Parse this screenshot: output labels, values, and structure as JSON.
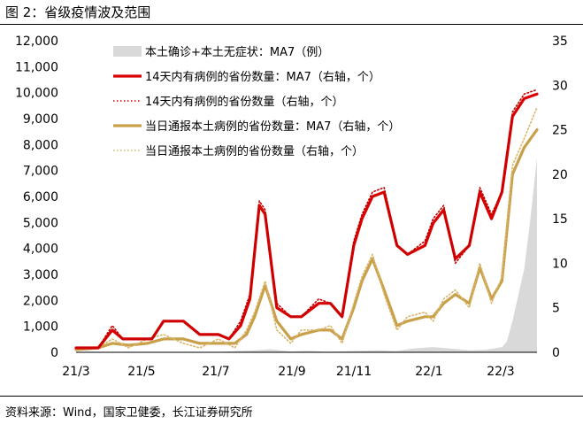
{
  "figure_title": "图 2：省级疫情波及范围",
  "source": "资料来源：Wind，国家卫健委，长江证券研究所",
  "colors": {
    "bar": "#d9d9d9",
    "line_red": "#d90000",
    "line_red_dot": "#c00000",
    "line_gold": "#c9a04a",
    "line_gold_dot": "#d9b56a"
  },
  "chart_data": {
    "type": "bar+line",
    "title": "",
    "xlabel": "",
    "ylabel_left": "",
    "ylabel_right": "",
    "x_ticks": [
      "21/3",
      "21/5",
      "21/7",
      "21/9",
      "21/11",
      "22/1",
      "22/3"
    ],
    "ylim_left": [
      0,
      12000
    ],
    "yticks_left": [
      "0",
      "1,000",
      "2,000",
      "3,000",
      "4,000",
      "5,000",
      "6,000",
      "7,000",
      "8,000",
      "9,000",
      "10,000",
      "11,000",
      "12,000"
    ],
    "ylim_right": [
      0,
      35
    ],
    "yticks_right": [
      "0",
      "5",
      "10",
      "15",
      "20",
      "25",
      "30",
      "35"
    ],
    "grid": false,
    "legend_position": "top-center",
    "legend": [
      "本土确诊+本土无症状：MA7（例）",
      "14天内有病例的省份数量：MA7（右轴，个）",
      "14天内有病例的省份数量（右轴，个）",
      "当日通报本土病例的省份数量：MA7（右轴，个）",
      "当日通报本土病例的省份数量（右轴，个）"
    ],
    "x_start": "2021-03-01",
    "x_end": "2022-03-31",
    "series": [
      {
        "name": "本土确诊+本土无症状：MA7（例）",
        "axis": "left",
        "style": "bar",
        "x": [
          "2021-03-01",
          "2021-04-01",
          "2021-05-01",
          "2021-06-01",
          "2021-07-01",
          "2021-08-01",
          "2021-08-15",
          "2021-09-01",
          "2021-09-15",
          "2021-10-01",
          "2021-10-20",
          "2021-11-01",
          "2021-11-15",
          "2021-12-01",
          "2021-12-15",
          "2022-01-01",
          "2022-01-15",
          "2022-02-01",
          "2022-02-15",
          "2022-03-01",
          "2022-03-05",
          "2022-03-10",
          "2022-03-15",
          "2022-03-20",
          "2022-03-25",
          "2022-03-31"
        ],
        "y": [
          10,
          10,
          15,
          20,
          15,
          80,
          120,
          30,
          60,
          20,
          40,
          60,
          80,
          50,
          150,
          200,
          150,
          80,
          100,
          200,
          400,
          1200,
          2200,
          3200,
          5000,
          7500
        ]
      },
      {
        "name": "14天内有病例的省份数量：MA7（右轴，个）",
        "axis": "right",
        "style": "line",
        "x": [
          "2021-03-01",
          "2021-03-20",
          "2021-04-01",
          "2021-04-10",
          "2021-04-25",
          "2021-05-05",
          "2021-05-15",
          "2021-06-01",
          "2021-06-15",
          "2021-07-01",
          "2021-07-10",
          "2021-07-20",
          "2021-07-28",
          "2021-08-05",
          "2021-08-10",
          "2021-08-20",
          "2021-09-01",
          "2021-09-10",
          "2021-09-25",
          "2021-10-05",
          "2021-10-15",
          "2021-10-25",
          "2021-11-01",
          "2021-11-10",
          "2021-11-20",
          "2021-12-01",
          "2021-12-10",
          "2021-12-25",
          "2022-01-01",
          "2022-01-10",
          "2022-01-20",
          "2022-02-01",
          "2022-02-10",
          "2022-02-20",
          "2022-03-01",
          "2022-03-10",
          "2022-03-20",
          "2022-03-31"
        ],
        "y": [
          0.5,
          0.5,
          2.5,
          1.5,
          1.5,
          1.5,
          3.5,
          3.5,
          2.0,
          2.0,
          1.5,
          3.0,
          6.0,
          16.5,
          15.5,
          5.0,
          4.0,
          4.0,
          5.5,
          5.5,
          4.0,
          12.0,
          15.0,
          17.5,
          18.0,
          12.0,
          11.0,
          12.0,
          14.5,
          16.0,
          10.5,
          12.0,
          18.0,
          15.0,
          18.0,
          26.5,
          28.5,
          29.0
        ]
      },
      {
        "name": "14天内有病例的省份数量（右轴，个）",
        "axis": "right",
        "style": "dotted",
        "x": [
          "2021-03-01",
          "2021-03-20",
          "2021-04-01",
          "2021-04-10",
          "2021-04-25",
          "2021-05-05",
          "2021-05-15",
          "2021-06-01",
          "2021-06-15",
          "2021-07-01",
          "2021-07-10",
          "2021-07-20",
          "2021-07-28",
          "2021-08-05",
          "2021-08-10",
          "2021-08-20",
          "2021-09-01",
          "2021-09-10",
          "2021-09-25",
          "2021-10-05",
          "2021-10-15",
          "2021-10-25",
          "2021-11-01",
          "2021-11-10",
          "2021-11-20",
          "2021-12-01",
          "2021-12-10",
          "2021-12-25",
          "2022-01-01",
          "2022-01-10",
          "2022-01-20",
          "2022-02-01",
          "2022-02-10",
          "2022-02-20",
          "2022-03-01",
          "2022-03-10",
          "2022-03-20",
          "2022-03-31"
        ],
        "y": [
          0.5,
          0.5,
          3.0,
          1.5,
          1.5,
          1.5,
          3.5,
          3.5,
          2.0,
          2.0,
          1.5,
          3.5,
          6.5,
          17.0,
          16.0,
          5.5,
          4.0,
          4.0,
          6.0,
          5.5,
          4.0,
          12.5,
          15.5,
          18.0,
          18.5,
          12.0,
          11.0,
          12.5,
          15.0,
          16.5,
          10.0,
          12.0,
          18.5,
          15.5,
          18.0,
          27.0,
          29.0,
          29.5
        ]
      },
      {
        "name": "当日通报本土病例的省份数量：MA7（右轴，个）",
        "axis": "right",
        "style": "line",
        "x": [
          "2021-03-01",
          "2021-03-20",
          "2021-04-01",
          "2021-04-15",
          "2021-05-01",
          "2021-05-15",
          "2021-06-01",
          "2021-06-15",
          "2021-07-01",
          "2021-07-15",
          "2021-07-25",
          "2021-08-01",
          "2021-08-10",
          "2021-08-20",
          "2021-09-01",
          "2021-09-10",
          "2021-09-25",
          "2021-10-05",
          "2021-10-15",
          "2021-10-25",
          "2021-11-01",
          "2021-11-10",
          "2021-11-20",
          "2021-12-01",
          "2021-12-10",
          "2021-12-25",
          "2022-01-01",
          "2022-01-10",
          "2022-01-20",
          "2022-02-01",
          "2022-02-10",
          "2022-02-20",
          "2022-03-01",
          "2022-03-10",
          "2022-03-20",
          "2022-03-31"
        ],
        "y": [
          0.3,
          0.5,
          1.0,
          0.8,
          1.0,
          1.5,
          1.5,
          1.0,
          1.0,
          1.0,
          2.0,
          4.0,
          7.5,
          3.5,
          1.5,
          2.0,
          2.5,
          2.5,
          1.5,
          5.0,
          8.0,
          10.5,
          7.0,
          3.0,
          3.5,
          4.0,
          4.0,
          5.5,
          6.5,
          5.5,
          9.5,
          6.0,
          8.0,
          20.0,
          23.0,
          25.0
        ]
      },
      {
        "name": "当日通报本土病例的省份数量（右轴，个）",
        "axis": "right",
        "style": "dotted",
        "x": [
          "2021-03-01",
          "2021-03-20",
          "2021-04-01",
          "2021-04-15",
          "2021-05-01",
          "2021-05-15",
          "2021-06-01",
          "2021-06-15",
          "2021-07-01",
          "2021-07-15",
          "2021-07-25",
          "2021-08-01",
          "2021-08-10",
          "2021-08-20",
          "2021-09-01",
          "2021-09-10",
          "2021-09-25",
          "2021-10-05",
          "2021-10-15",
          "2021-10-25",
          "2021-11-01",
          "2021-11-10",
          "2021-11-20",
          "2021-12-01",
          "2021-12-10",
          "2021-12-25",
          "2022-01-01",
          "2022-01-10",
          "2022-01-20",
          "2022-02-01",
          "2022-02-10",
          "2022-02-20",
          "2022-03-01",
          "2022-03-10",
          "2022-03-20",
          "2022-03-31"
        ],
        "y": [
          0.3,
          0.5,
          1.5,
          0.5,
          1.5,
          2.0,
          1.0,
          0.5,
          1.5,
          0.5,
          2.5,
          4.5,
          8.0,
          2.5,
          1.0,
          2.5,
          2.5,
          3.0,
          1.0,
          5.5,
          8.5,
          11.0,
          6.5,
          2.5,
          4.0,
          4.5,
          3.5,
          6.0,
          7.0,
          5.0,
          10.0,
          5.5,
          8.5,
          21.0,
          24.0,
          27.5
        ]
      }
    ]
  }
}
